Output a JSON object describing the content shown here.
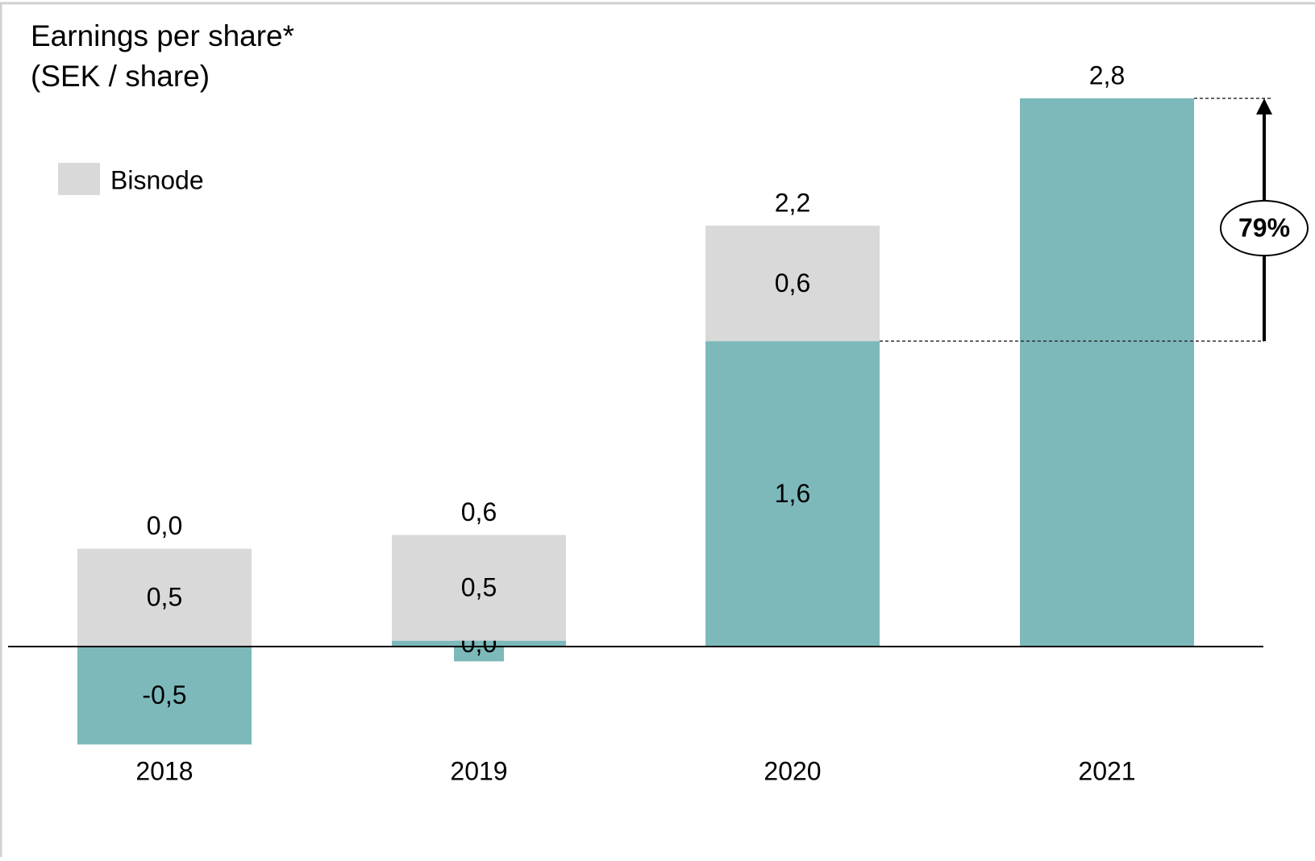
{
  "chart_data": {
    "type": "stacked-bar",
    "title": "Earnings per share*",
    "subtitle": "(SEK / share)",
    "categories": [
      "2018",
      "2019",
      "2020",
      "2021"
    ],
    "series": [
      {
        "color": "#7db9bb",
        "values": [
          -0.5,
          0.03,
          1.56,
          2.8
        ],
        "value_labels": [
          "-0,5",
          "0,0",
          "1,6",
          null
        ]
      },
      {
        "name": "Bisnode",
        "color": "#d9d9d9",
        "values": [
          0.5,
          0.54,
          0.59,
          null
        ],
        "value_labels": [
          "0,5",
          "0,5",
          "0,6",
          null
        ]
      }
    ],
    "totals": [
      0.0,
      0.57,
      2.16,
      2.8
    ],
    "total_labels": [
      "0,0",
      "0,6",
      "2,2",
      "2,8"
    ],
    "annotation": "79%"
  }
}
